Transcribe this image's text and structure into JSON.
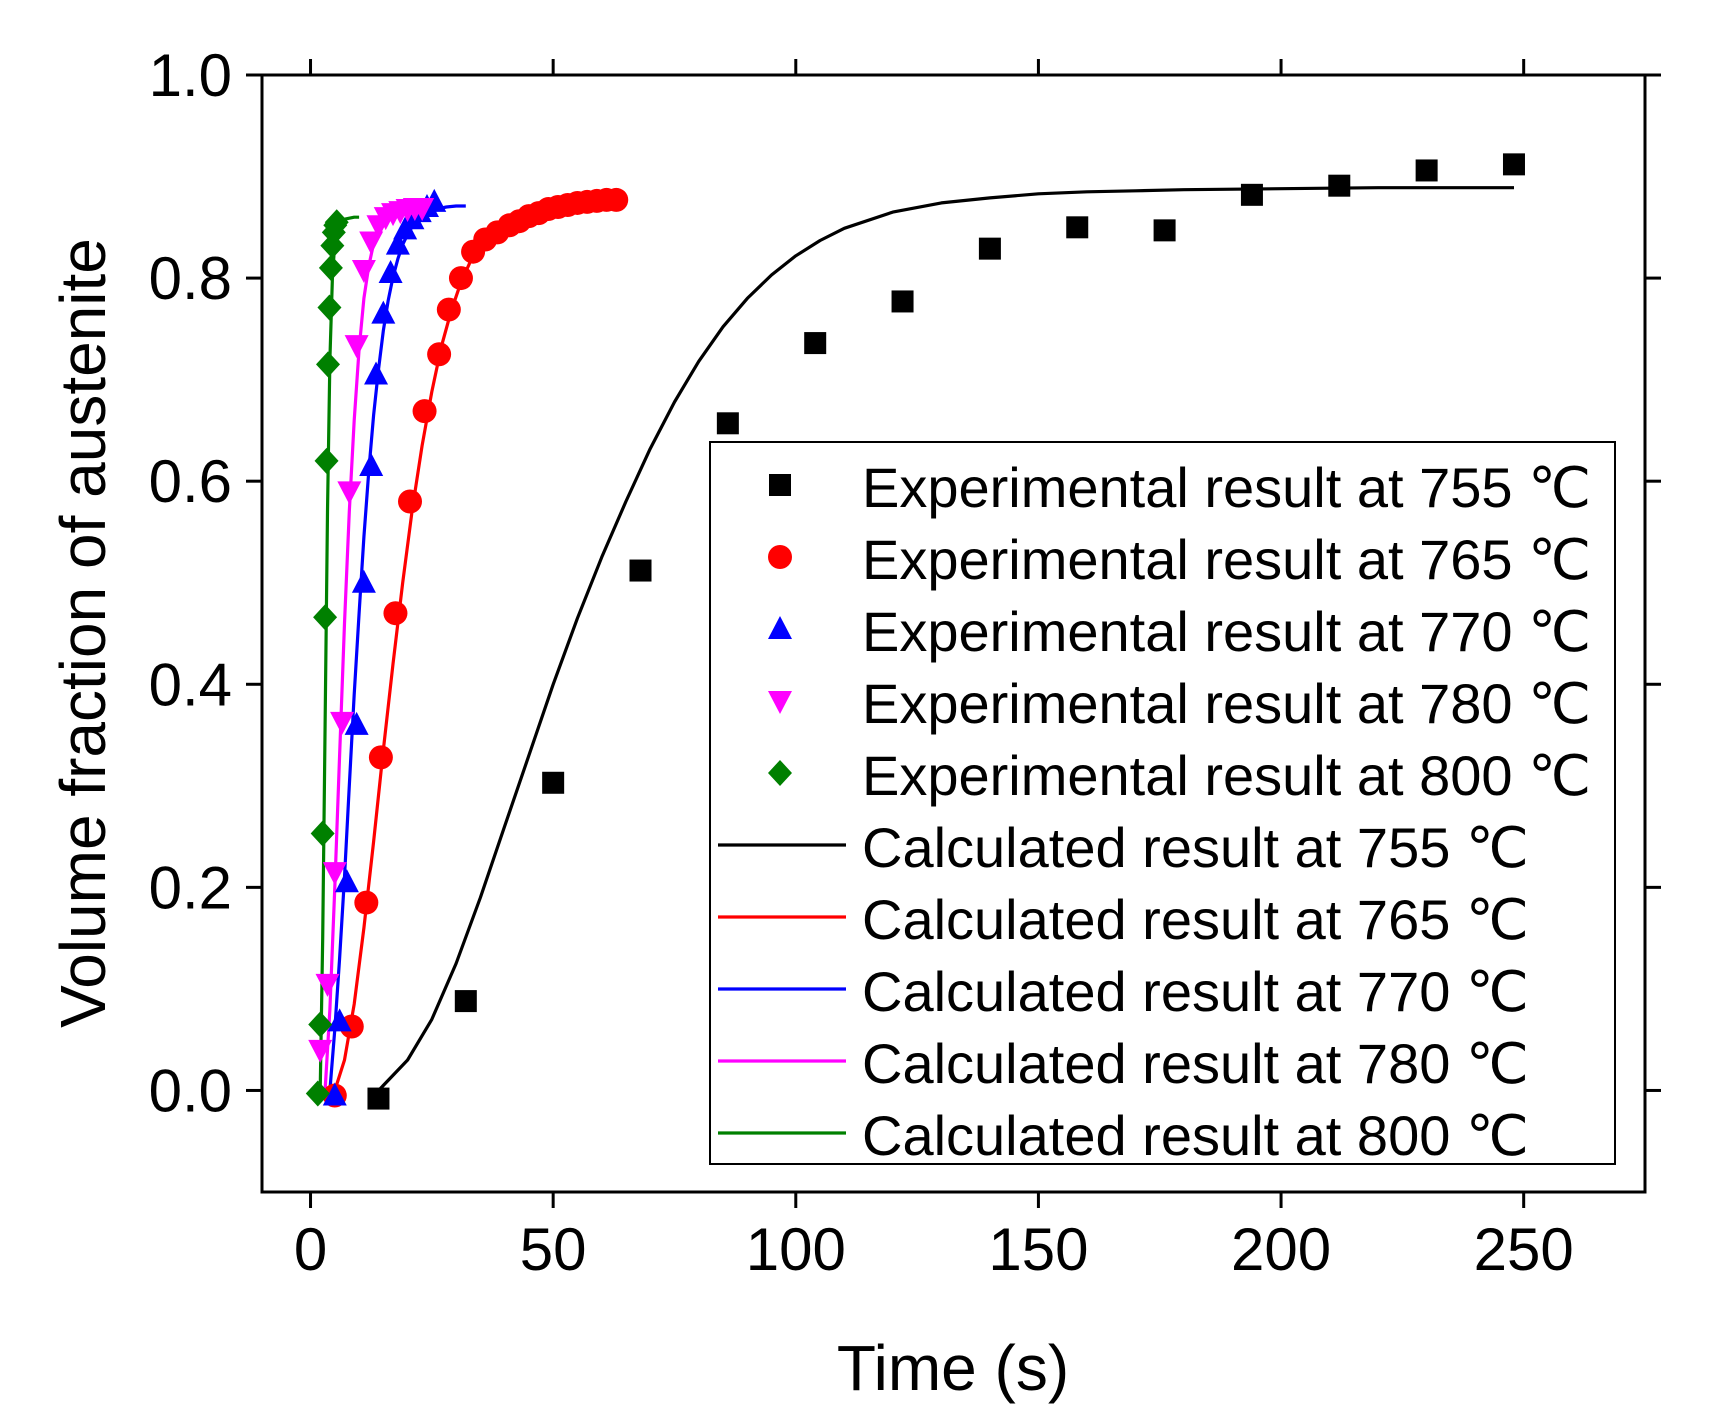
{
  "chart_data": {
    "type": "scatter",
    "title": "",
    "xlabel": "Time (s)",
    "ylabel": "Volume fraction of austenite",
    "xlim": [
      -10,
      275
    ],
    "ylim": [
      -0.1,
      1.0
    ],
    "xticks": [
      0,
      50,
      100,
      150,
      200,
      250
    ],
    "xtick_labels": [
      "0",
      "50",
      "100",
      "150",
      "200",
      "250"
    ],
    "yticks": [
      0.0,
      0.2,
      0.4,
      0.6,
      0.8,
      1.0
    ],
    "ytick_labels": [
      "0.0",
      "0.2",
      "0.4",
      "0.6",
      "0.8",
      "1.0"
    ],
    "grid": false,
    "legend_position": "bottom-right",
    "experimental": [
      {
        "name": "Experimental result at 755 ℃",
        "color": "#000000",
        "marker": "square",
        "x": [
          14,
          32,
          50,
          68,
          86,
          104,
          122,
          140,
          158,
          176,
          194,
          212,
          230,
          248
        ],
        "y": [
          -0.008,
          0.088,
          0.303,
          0.512,
          0.657,
          0.736,
          0.777,
          0.829,
          0.85,
          0.847,
          0.882,
          0.891,
          0.906,
          0.912
        ]
      },
      {
        "name": "Experimental result at 765 ℃",
        "color": "#ff0000",
        "marker": "circle",
        "x": [
          5,
          8.5,
          11.5,
          14.5,
          17.5,
          20.5,
          23.5,
          26.5,
          28.5,
          31,
          33.5,
          36,
          38.5,
          41,
          43,
          45,
          47,
          49,
          51,
          53,
          55,
          57,
          59,
          61,
          63
        ],
        "y": [
          -0.005,
          0.063,
          0.185,
          0.328,
          0.47,
          0.58,
          0.669,
          0.725,
          0.769,
          0.8,
          0.826,
          0.838,
          0.845,
          0.852,
          0.856,
          0.861,
          0.864,
          0.868,
          0.87,
          0.872,
          0.874,
          0.875,
          0.876,
          0.877,
          0.877
        ]
      },
      {
        "name": "Experimental result at 770 ℃",
        "color": "#0000ff",
        "marker": "triangle-up",
        "x": [
          5,
          6,
          7.5,
          9.5,
          11,
          12.5,
          13.5,
          15,
          16.5,
          18,
          19.5,
          21,
          22.5,
          24,
          25.5
        ],
        "y": [
          -0.005,
          0.068,
          0.205,
          0.36,
          0.5,
          0.615,
          0.705,
          0.765,
          0.805,
          0.833,
          0.848,
          0.858,
          0.865,
          0.87,
          0.875
        ]
      },
      {
        "name": "Experimental result at 780 ℃",
        "color": "#ff00ff",
        "marker": "triangle-down",
        "x": [
          2,
          3.5,
          5,
          6.5,
          8,
          9.5,
          11,
          12.5,
          14,
          15.5,
          17,
          18.5,
          20,
          21.5,
          23
        ],
        "y": [
          0.04,
          0.105,
          0.215,
          0.363,
          0.59,
          0.734,
          0.808,
          0.836,
          0.852,
          0.86,
          0.864,
          0.866,
          0.868,
          0.869,
          0.869
        ]
      },
      {
        "name": "Experimental result at 800 ℃",
        "color": "#008000",
        "marker": "diamond",
        "x": [
          1.5,
          2,
          2.5,
          3,
          3.3,
          3.6,
          3.9,
          4.2,
          4.5,
          4.8,
          5.1,
          5.4
        ],
        "y": [
          -0.003,
          0.065,
          0.253,
          0.466,
          0.62,
          0.715,
          0.771,
          0.81,
          0.832,
          0.845,
          0.852,
          0.855
        ]
      }
    ],
    "calculated": [
      {
        "name": "Calculated result at 755 ℃",
        "color": "#000000",
        "x": [
          14,
          20,
          25,
          30,
          35,
          40,
          45,
          50,
          55,
          60,
          65,
          70,
          75,
          80,
          85,
          90,
          95,
          100,
          105,
          110,
          120,
          130,
          140,
          150,
          160,
          170,
          180,
          200,
          220,
          248
        ],
        "y": [
          0,
          0.03,
          0.07,
          0.125,
          0.19,
          0.26,
          0.33,
          0.4,
          0.465,
          0.525,
          0.58,
          0.632,
          0.678,
          0.718,
          0.752,
          0.78,
          0.803,
          0.822,
          0.837,
          0.849,
          0.865,
          0.874,
          0.879,
          0.883,
          0.885,
          0.886,
          0.887,
          0.888,
          0.889,
          0.889
        ]
      },
      {
        "name": "Calculated result at 765 ℃",
        "color": "#ff0000",
        "x": [
          5,
          7,
          9,
          11,
          13,
          15,
          17,
          19,
          21,
          23,
          25,
          27,
          29,
          31,
          33,
          35,
          37,
          39,
          41,
          43,
          45,
          48,
          51,
          54,
          57,
          60,
          62
        ],
        "y": [
          0,
          0.03,
          0.085,
          0.16,
          0.245,
          0.335,
          0.42,
          0.5,
          0.573,
          0.635,
          0.688,
          0.733,
          0.768,
          0.796,
          0.817,
          0.833,
          0.845,
          0.854,
          0.86,
          0.865,
          0.868,
          0.872,
          0.874,
          0.875,
          0.876,
          0.877,
          0.877
        ]
      },
      {
        "name": "Calculated result at 770 ℃",
        "color": "#0000ff",
        "x": [
          4,
          5,
          6,
          7,
          8,
          9,
          10,
          11,
          12,
          13,
          14,
          15,
          16,
          17,
          18,
          19,
          20,
          21,
          22,
          24,
          26,
          28,
          30,
          32
        ],
        "y": [
          0,
          0.06,
          0.13,
          0.21,
          0.3,
          0.39,
          0.47,
          0.545,
          0.61,
          0.665,
          0.71,
          0.748,
          0.778,
          0.801,
          0.819,
          0.833,
          0.843,
          0.851,
          0.857,
          0.864,
          0.868,
          0.87,
          0.871,
          0.871
        ]
      },
      {
        "name": "Calculated result at 780 ℃",
        "color": "#ff00ff",
        "x": [
          3,
          4,
          5,
          6,
          7,
          8,
          9,
          10,
          11,
          12,
          13,
          14,
          15,
          16,
          17,
          18,
          19,
          20,
          22,
          24,
          26
        ],
        "y": [
          0,
          0.08,
          0.2,
          0.33,
          0.46,
          0.57,
          0.66,
          0.73,
          0.78,
          0.812,
          0.834,
          0.848,
          0.856,
          0.861,
          0.864,
          0.866,
          0.867,
          0.868,
          0.869,
          0.869,
          0.869
        ]
      },
      {
        "name": "Calculated result at 800 ℃",
        "color": "#008000",
        "x": [
          2,
          2.5,
          3,
          3.5,
          4,
          4.5,
          5,
          5.5,
          6,
          7,
          8,
          9,
          10
        ],
        "y": [
          0,
          0.15,
          0.36,
          0.57,
          0.72,
          0.8,
          0.835,
          0.849,
          0.855,
          0.858,
          0.859,
          0.86,
          0.86
        ]
      }
    ]
  }
}
